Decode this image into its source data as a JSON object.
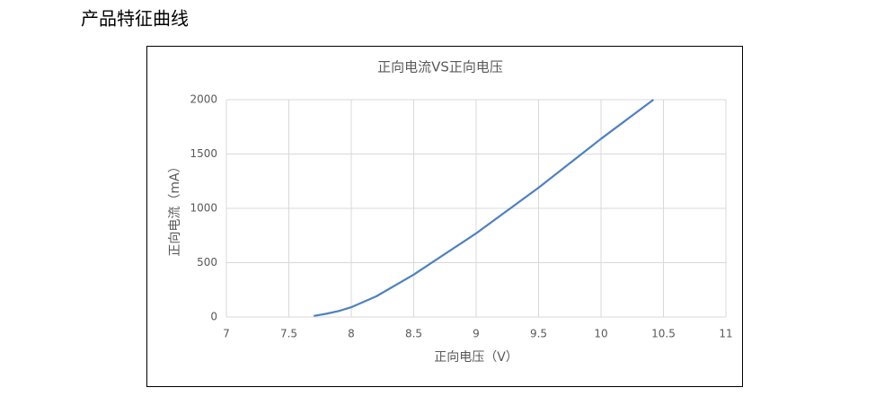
{
  "heading": "产品特征曲线",
  "chart_data": {
    "type": "line",
    "title": "正向电流VS正向电压",
    "x_label": "正向电压（V）",
    "y_label": "正向电流（mA）",
    "x": [
      7.7,
      7.8,
      7.9,
      8.0,
      8.2,
      8.5,
      9.0,
      9.5,
      10.0,
      10.42
    ],
    "series": [
      {
        "name": "正向电流",
        "color": "#4f81bd",
        "values": [
          10,
          30,
          55,
          90,
          190,
          390,
          770,
          1190,
          1640,
          2000
        ]
      }
    ],
    "xlim": [
      7,
      11
    ],
    "xticks": [
      7,
      7.5,
      8,
      8.5,
      9,
      9.5,
      10,
      10.5,
      11
    ],
    "ylim": [
      0,
      2000
    ],
    "yticks": [
      0,
      500,
      1000,
      1500,
      2000
    ],
    "grid": true
  }
}
